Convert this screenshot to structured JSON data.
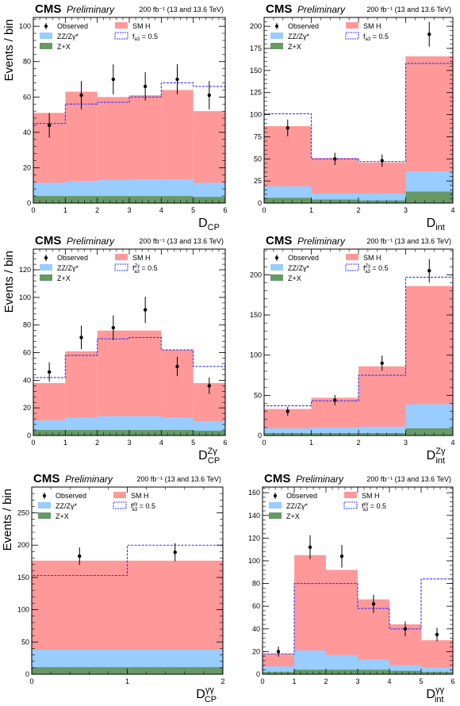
{
  "colors": {
    "zz": "#99ccff",
    "zx": "#669966",
    "smh": "#ff9999",
    "alt": "#3333ff",
    "data": "#000000"
  },
  "header": {
    "experiment": "CMS",
    "tag": "Preliminary",
    "lumi": "200 fb⁻¹ (13 and 13.6 TeV)"
  },
  "legend": {
    "observed": "Observed",
    "zz": "ZZ/Zγ*",
    "zx": "Z+X",
    "smh": "SM H"
  },
  "chart_data": [
    {
      "type": "bar",
      "xlabel": "D",
      "xlabel_sub": "CP",
      "xlabel_sup": "",
      "ylabel": "Events / bin",
      "alt_label_main": "f",
      "alt_label_sub": "a3",
      "alt_label_sup": "",
      "alt_label_rest": " = 0.5",
      "bin_edges": [
        0,
        1,
        2,
        3,
        4,
        5,
        6
      ],
      "xlim": [
        0,
        6
      ],
      "ylim": [
        0,
        105
      ],
      "xticks": [
        0,
        1,
        2,
        3,
        4,
        5,
        6
      ],
      "yticks": [
        0,
        20,
        40,
        60,
        80,
        100
      ],
      "zx": [
        4,
        4,
        4,
        4,
        4,
        3.5
      ],
      "zz": [
        7.5,
        8.5,
        9,
        9.5,
        9.5,
        8
      ],
      "total": [
        51,
        63,
        60,
        61,
        64,
        52
      ],
      "alt": [
        45,
        56,
        57,
        60,
        68,
        66
      ],
      "observed": [
        {
          "x": 0.5,
          "y": 44,
          "err": 7
        },
        {
          "x": 1.5,
          "y": 61,
          "err": 8
        },
        {
          "x": 2.5,
          "y": 70,
          "err": 8.5
        },
        {
          "x": 3.5,
          "y": 66,
          "err": 8
        },
        {
          "x": 4.5,
          "y": 70,
          "err": 8.5
        },
        {
          "x": 5.5,
          "y": 61,
          "err": 8
        }
      ]
    },
    {
      "type": "bar",
      "xlabel": "D",
      "xlabel_sub": "int",
      "xlabel_sup": "",
      "ylabel": "",
      "alt_label_main": "f",
      "alt_label_sub": "a3",
      "alt_label_sup": "",
      "alt_label_rest": " = 0.5",
      "bin_edges": [
        0,
        1,
        2,
        3,
        4
      ],
      "xlim": [
        0,
        4
      ],
      "ylim": [
        0,
        210
      ],
      "xticks": [
        0,
        1,
        2,
        3,
        4
      ],
      "yticks": [
        0,
        25,
        50,
        75,
        100,
        125,
        150,
        175,
        200
      ],
      "zx": [
        6,
        4,
        3,
        13
      ],
      "zz": [
        13,
        7,
        8,
        23
      ],
      "total": [
        87,
        51,
        46,
        166
      ],
      "alt": [
        101,
        50,
        47,
        158
      ],
      "observed": [
        {
          "x": 0.5,
          "y": 85,
          "err": 9.5
        },
        {
          "x": 1.5,
          "y": 50,
          "err": 7
        },
        {
          "x": 2.5,
          "y": 48,
          "err": 7
        },
        {
          "x": 3.5,
          "y": 191,
          "err": 14
        }
      ]
    },
    {
      "type": "bar",
      "xlabel": "D",
      "xlabel_sub": "CP",
      "xlabel_sup": "Zγ",
      "ylabel": "Events / bin",
      "alt_label_main": "f",
      "alt_label_sub": "a3",
      "alt_label_sup": "Zγ",
      "alt_label_rest": " = 0.5",
      "bin_edges": [
        0,
        1,
        2,
        3,
        4,
        5,
        6
      ],
      "xlim": [
        0,
        6
      ],
      "ylim": [
        0,
        135
      ],
      "xticks": [
        0,
        1,
        2,
        3,
        4,
        5,
        6
      ],
      "yticks": [
        0,
        20,
        40,
        60,
        80,
        100,
        120
      ],
      "zx": [
        4,
        4,
        4,
        4,
        4,
        3.5
      ],
      "zz": [
        7,
        9,
        10,
        10,
        9,
        7
      ],
      "total": [
        38,
        61,
        76,
        76,
        62,
        38
      ],
      "alt": [
        42,
        58,
        70,
        71,
        62,
        50
      ],
      "observed": [
        {
          "x": 0.5,
          "y": 46,
          "err": 7
        },
        {
          "x": 1.5,
          "y": 71,
          "err": 8.5
        },
        {
          "x": 2.5,
          "y": 78,
          "err": 9
        },
        {
          "x": 3.5,
          "y": 91,
          "err": 9.5
        },
        {
          "x": 4.5,
          "y": 50,
          "err": 7
        },
        {
          "x": 5.5,
          "y": 36,
          "err": 6
        }
      ]
    },
    {
      "type": "bar",
      "xlabel": "D",
      "xlabel_sub": "int",
      "xlabel_sup": "Zγ",
      "ylabel": "",
      "alt_label_main": "f",
      "alt_label_sub": "a3",
      "alt_label_sup": "Zγ",
      "alt_label_rest": " = 0.5",
      "bin_edges": [
        0,
        1,
        2,
        3,
        4
      ],
      "xlim": [
        0,
        4
      ],
      "ylim": [
        0,
        232
      ],
      "xticks": [
        0,
        1,
        2,
        3,
        4
      ],
      "yticks": [
        0,
        50,
        100,
        150,
        200
      ],
      "zx": [
        3,
        3,
        3,
        9
      ],
      "zz": [
        6,
        7,
        8,
        30
      ],
      "total": [
        33,
        47,
        86,
        186
      ],
      "alt": [
        37,
        43,
        75,
        197
      ],
      "observed": [
        {
          "x": 0.5,
          "y": 30,
          "err": 5.5
        },
        {
          "x": 1.5,
          "y": 44,
          "err": 6.5
        },
        {
          "x": 2.5,
          "y": 90,
          "err": 9.5
        },
        {
          "x": 3.5,
          "y": 205,
          "err": 14.5
        }
      ]
    },
    {
      "type": "bar",
      "xlabel": "D",
      "xlabel_sub": "CP",
      "xlabel_sup": "γγ",
      "ylabel": "Events / bin",
      "alt_label_main": "f",
      "alt_label_sub": "a3",
      "alt_label_sup": "γγ",
      "alt_label_rest": " = 0.5",
      "bin_edges": [
        0,
        1,
        2
      ],
      "xlim": [
        0,
        2
      ],
      "ylim": [
        0,
        290
      ],
      "xticks": [
        0,
        1,
        2
      ],
      "yticks": [
        0,
        50,
        100,
        150,
        200,
        250
      ],
      "zx": [
        11,
        11
      ],
      "zz": [
        27,
        27
      ],
      "total": [
        176,
        176
      ],
      "alt": [
        153,
        200
      ],
      "observed": [
        {
          "x": 0.5,
          "y": 183,
          "err": 13.5
        },
        {
          "x": 1.5,
          "y": 189,
          "err": 14
        }
      ]
    },
    {
      "type": "bar",
      "xlabel": "D",
      "xlabel_sub": "int",
      "xlabel_sup": "γγ",
      "ylabel": "",
      "alt_label_main": "f",
      "alt_label_sub": "a3",
      "alt_label_sup": "γγ",
      "alt_label_rest": " = 0.5",
      "bin_edges": [
        0,
        1,
        2,
        3,
        4,
        5,
        6
      ],
      "xlim": [
        0,
        6
      ],
      "ylim": [
        0,
        165
      ],
      "xticks": [
        0,
        1,
        2,
        3,
        4,
        5,
        6
      ],
      "yticks": [
        0,
        20,
        40,
        60,
        80,
        100,
        120,
        140,
        160
      ],
      "zx": [
        2,
        4,
        4,
        4,
        3,
        2
      ],
      "zz": [
        5,
        17,
        13,
        9,
        5,
        4
      ],
      "total": [
        18,
        105,
        92,
        66,
        44,
        30
      ],
      "alt": [
        18,
        80,
        80,
        58,
        40,
        84
      ],
      "observed": [
        {
          "x": 0.5,
          "y": 20,
          "err": 4.5
        },
        {
          "x": 1.5,
          "y": 112,
          "err": 10.5
        },
        {
          "x": 2.5,
          "y": 104,
          "err": 10
        },
        {
          "x": 3.5,
          "y": 62,
          "err": 8
        },
        {
          "x": 4.5,
          "y": 40,
          "err": 6.5
        },
        {
          "x": 5.5,
          "y": 35,
          "err": 6
        }
      ]
    }
  ]
}
